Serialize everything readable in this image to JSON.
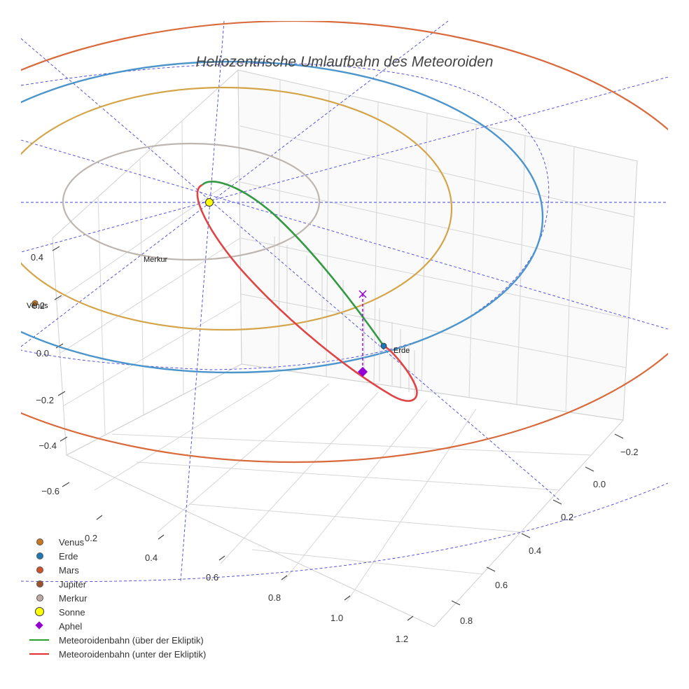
{
  "chart_data": {
    "type": "scatter3d",
    "title": "Heliozentrische Umlaufbahn des Meteoroiden",
    "z_ticks": [
      "0.4",
      "0.2",
      "0.0",
      "−0.2",
      "−0.4",
      "−0.6"
    ],
    "x_ticks": [
      "0.2",
      "0.4",
      "0.6",
      "0.8",
      "1.0",
      "1.2"
    ],
    "y_ticks": [
      "−0.2",
      "0.0",
      "0.2",
      "0.4",
      "0.6",
      "0.8"
    ],
    "planet_labels": [
      "Merkur",
      "Venus",
      "Erde"
    ],
    "legend": [
      {
        "name": "Venus",
        "kind": "dot",
        "color": "#c8781e"
      },
      {
        "name": "Erde",
        "kind": "dot",
        "color": "#1f78b4"
      },
      {
        "name": "Mars",
        "kind": "dot",
        "color": "#d2522a"
      },
      {
        "name": "Jupiter",
        "kind": "dot",
        "color": "#a0522d"
      },
      {
        "name": "Merkur",
        "kind": "dot",
        "color": "#bcaaa4"
      },
      {
        "name": "Sonne",
        "kind": "sun",
        "color": "#ffff00"
      },
      {
        "name": "Aphel",
        "kind": "diamond",
        "color": "#9400d3"
      },
      {
        "name": "Meteoroidenbahn (über der Ekliptik)",
        "kind": "line",
        "color": "#2ca02c"
      },
      {
        "name": "Meteoroidenbahn (unter der Ekliptik)",
        "kind": "line",
        "color": "#e03030"
      }
    ],
    "colors": {
      "merkur_orbit": "#bdb5b0",
      "venus_orbit": "#d4a448",
      "erde_orbit": "#3e8ed0",
      "mars_orbit": "#d96a3c",
      "guides": "#3333cc",
      "grid": "#d0d0d0",
      "axis": "#888888"
    }
  }
}
